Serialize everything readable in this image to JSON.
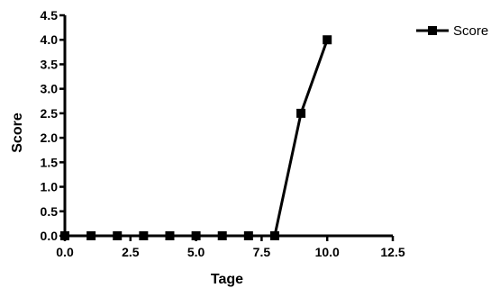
{
  "chart_data": {
    "type": "line",
    "title": "",
    "xlabel": "Tage",
    "ylabel": "Score",
    "xlim": [
      0,
      12.5
    ],
    "ylim": [
      0,
      4.5
    ],
    "x_ticks": [
      "0.0",
      "2.5",
      "5.0",
      "7.5",
      "10.0",
      "12.5"
    ],
    "y_ticks": [
      "0.0",
      "0.5",
      "1.0",
      "1.5",
      "2.0",
      "2.5",
      "3.0",
      "3.5",
      "4.0",
      "4.5"
    ],
    "grid": false,
    "legend_position": "top-right",
    "series": [
      {
        "name": "Score",
        "marker": "square",
        "color": "#000000",
        "x": [
          0,
          1,
          2,
          3,
          4,
          5,
          6,
          7,
          8,
          9,
          10
        ],
        "y": [
          0,
          0,
          0,
          0,
          0,
          0,
          0,
          0,
          0,
          2.5,
          4.0
        ]
      }
    ]
  }
}
